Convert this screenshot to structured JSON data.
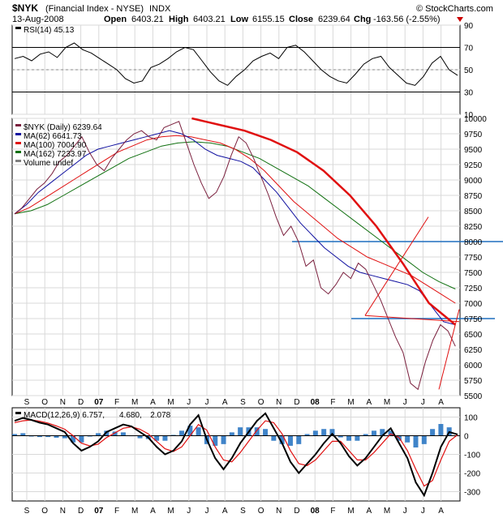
{
  "header": {
    "symbol": "$NYK",
    "name": "(Financial Index - NYSE)",
    "exchange": "INDX",
    "date": "13-Aug-2008",
    "watermark": "© StockCharts.com",
    "ohlc": {
      "open_label": "Open",
      "open": "6403.21",
      "high_label": "High",
      "high": "6403.21",
      "low_label": "Low",
      "low": "6155.15",
      "close_label": "Close",
      "close": "6239.64",
      "chg_label": "Chg",
      "chg": "-163.56 (-2.55%)"
    },
    "down_color": "#cc0000"
  },
  "month_labels": [
    "S",
    "O",
    "N",
    "D",
    "07",
    "F",
    "M",
    "A",
    "M",
    "J",
    "J",
    "A",
    "S",
    "O",
    "N",
    "D",
    "08",
    "F",
    "M",
    "A",
    "M",
    "J",
    "J",
    "A"
  ],
  "chart_data": [
    {
      "type": "line",
      "panel": "rsi",
      "legend": [
        {
          "label": "RSI(14) 45.13",
          "color": "#000000"
        }
      ],
      "ylim": [
        10,
        90
      ],
      "yticks": [
        10,
        30,
        50,
        70,
        90
      ],
      "reference_lines": [
        30,
        70
      ],
      "series": [
        {
          "name": "RSI(14)",
          "color": "#000000",
          "values": [
            60,
            62,
            58,
            64,
            66,
            61,
            70,
            74,
            68,
            65,
            60,
            55,
            50,
            42,
            38,
            40,
            52,
            55,
            60,
            66,
            70,
            68,
            58,
            48,
            40,
            36,
            44,
            50,
            58,
            62,
            65,
            60,
            70,
            72,
            66,
            58,
            50,
            44,
            40,
            38,
            46,
            55,
            60,
            62,
            52,
            45,
            38,
            36,
            44,
            56,
            62,
            50,
            45
          ]
        }
      ]
    },
    {
      "type": "line",
      "panel": "price",
      "legend": [
        {
          "label": "$NYK (Daily) 6239.64",
          "color": "#7a1f3d"
        },
        {
          "label": "MA(62) 6641.73",
          "color": "#1010a0"
        },
        {
          "label": "MA(100) 7004.90",
          "color": "#e01010"
        },
        {
          "label": "MA(162) 7233.97",
          "color": "#107010"
        },
        {
          "label": "Volume undef",
          "color": "#808080"
        }
      ],
      "ylim": [
        5500,
        10000
      ],
      "yticks": [
        5500,
        5750,
        6000,
        6250,
        6500,
        6750,
        7000,
        7250,
        7500,
        7750,
        8000,
        8250,
        8500,
        8750,
        9000,
        9250,
        9500,
        9750,
        10000
      ],
      "horizontal_lines": [
        8000,
        6750
      ],
      "series": [
        {
          "name": "$NYK (Daily)",
          "color": "#7a1f3d",
          "values": [
            8450,
            8550,
            8700,
            8850,
            8950,
            9100,
            9300,
            9400,
            9550,
            9700,
            9450,
            9250,
            9150,
            9350,
            9500,
            9650,
            9750,
            9800,
            9700,
            9650,
            9850,
            9900,
            9950,
            9600,
            9250,
            8950,
            8700,
            8800,
            9050,
            9400,
            9700,
            9600,
            9350,
            9050,
            8750,
            8400,
            8100,
            8250,
            8000,
            7600,
            7700,
            7250,
            7150,
            7300,
            7500,
            7400,
            7650,
            7550,
            7300,
            7050,
            6750,
            6450,
            6200,
            5700,
            5600,
            6050,
            6400,
            6650,
            6550,
            6300
          ]
        },
        {
          "name": "MA(62)",
          "color": "#1010a0",
          "values": [
            8450,
            8600,
            8800,
            8950,
            9100,
            9250,
            9400,
            9500,
            9550,
            9600,
            9650,
            9700,
            9750,
            9800,
            9750,
            9650,
            9500,
            9400,
            9350,
            9300,
            9200,
            9000,
            8800,
            8550,
            8300,
            8100,
            7900,
            7750,
            7600,
            7500,
            7450,
            7400,
            7350,
            7300,
            7200,
            6950,
            6700,
            6650
          ]
        },
        {
          "name": "MA(100)",
          "color": "#e01010",
          "values": [
            8450,
            8550,
            8700,
            8850,
            9000,
            9150,
            9300,
            9450,
            9550,
            9650,
            9700,
            9720,
            9700,
            9650,
            9600,
            9500,
            9350,
            9150,
            8900,
            8650,
            8450,
            8250,
            8050,
            7900,
            7750,
            7650,
            7550,
            7450,
            7300,
            7150,
            7000
          ]
        },
        {
          "name": "MA(162)",
          "color": "#107010",
          "values": [
            8450,
            8500,
            8600,
            8750,
            8900,
            9050,
            9200,
            9350,
            9450,
            9550,
            9600,
            9620,
            9600,
            9550,
            9450,
            9350,
            9200,
            9050,
            8900,
            8700,
            8500,
            8300,
            8100,
            7900,
            7700,
            7500,
            7350,
            7230
          ]
        },
        {
          "name": "Trendline",
          "color": "#e01010",
          "values": [
            10000,
            9900,
            9800,
            9650,
            9450,
            9150,
            8750,
            8250,
            7650,
            7000,
            6650
          ]
        }
      ]
    },
    {
      "type": "line",
      "panel": "macd",
      "legend": [
        {
          "label": "MACD(12,26,9) 6.757,",
          "color": "#000000"
        },
        {
          "label": "4.680,",
          "color": "#e01010"
        },
        {
          "label": "2.078",
          "color": "#1f6fbf"
        }
      ],
      "ylim": [
        -350,
        150
      ],
      "yticks": [
        -300,
        -200,
        -100,
        0,
        100
      ],
      "series": [
        {
          "name": "MACD",
          "color": "#000000",
          "values": [
            80,
            95,
            85,
            70,
            60,
            40,
            20,
            -40,
            -80,
            -60,
            -30,
            20,
            40,
            60,
            50,
            20,
            -10,
            -60,
            -100,
            -80,
            -30,
            60,
            110,
            -20,
            -120,
            -180,
            -120,
            -40,
            20,
            80,
            120,
            40,
            -40,
            -140,
            -200,
            -150,
            -100,
            -40,
            10,
            -40,
            -110,
            -160,
            -120,
            -60,
            0,
            40,
            -40,
            -120,
            -250,
            -320,
            -200,
            -60,
            20,
            7
          ]
        },
        {
          "name": "Signal",
          "color": "#e01010",
          "values": [
            70,
            80,
            85,
            78,
            68,
            52,
            35,
            0,
            -40,
            -55,
            -45,
            -10,
            15,
            40,
            48,
            35,
            10,
            -30,
            -70,
            -85,
            -60,
            0,
            60,
            30,
            -60,
            -130,
            -140,
            -90,
            -30,
            30,
            80,
            70,
            10,
            -80,
            -150,
            -160,
            -130,
            -80,
            -30,
            -30,
            -80,
            -130,
            -130,
            -90,
            -40,
            10,
            -10,
            -80,
            -180,
            -270,
            -240,
            -130,
            -30,
            5
          ]
        }
      ]
    }
  ],
  "annotations": {
    "channel_lines": [
      {
        "from": {
          "month": "F",
          "year": "08",
          "value": 6800
        },
        "to": {
          "month": "M",
          "year": "08",
          "value": 8400
        },
        "color": "#e01010"
      },
      {
        "from": {
          "month": "F",
          "year": "08",
          "value": 6800
        },
        "to": {
          "month": "A",
          "year": "08",
          "value": 6700
        },
        "color": "#e01010"
      },
      {
        "from": {
          "month": "J",
          "year": "08",
          "value": 5600
        },
        "to": {
          "month": "A",
          "year": "08",
          "value": 6900
        },
        "color": "#e01010"
      }
    ],
    "horizontal_line_color": "#1f6fbf"
  }
}
